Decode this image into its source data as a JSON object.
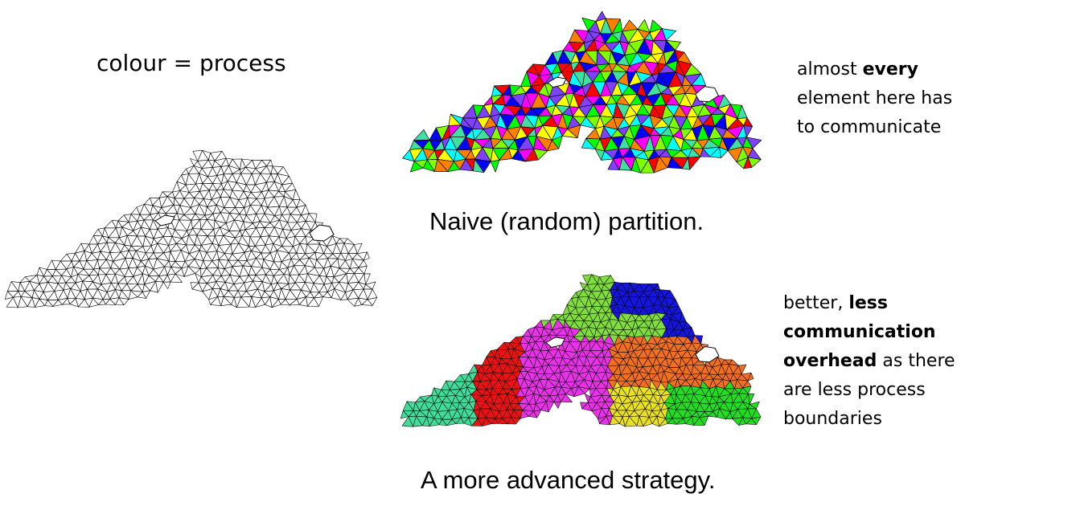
{
  "legend_text": "colour = process",
  "naive": {
    "caption": "Naive (random) partition.",
    "note": [
      {
        "text": "almost ",
        "bold": false
      },
      {
        "text": "every",
        "bold": true
      },
      {
        "text": " element here has to communicate",
        "bold": false
      }
    ],
    "palette": [
      "#ff0000",
      "#00ff00",
      "#0000ff",
      "#ffff00",
      "#ff00ff",
      "#00ffff",
      "#ff8000",
      "#40e0a0",
      "#8040ff",
      "#80ff00"
    ]
  },
  "advanced": {
    "caption": "A more advanced strategy.",
    "note": [
      {
        "text": "better, ",
        "bold": false
      },
      {
        "text": "less communication overhead",
        "bold": true
      },
      {
        "text": " as there are less process boundaries",
        "bold": false
      }
    ],
    "regions": [
      {
        "name": "teal",
        "color": "#3fdc9a"
      },
      {
        "name": "red",
        "color": "#ee1111"
      },
      {
        "name": "magenta",
        "color": "#e832e8"
      },
      {
        "name": "lime",
        "color": "#80dd3c"
      },
      {
        "name": "blue",
        "color": "#1515dd"
      },
      {
        "name": "orange",
        "color": "#f07020"
      },
      {
        "name": "yellow",
        "color": "#e8e020"
      },
      {
        "name": "green",
        "color": "#22dd22"
      }
    ]
  },
  "mesh_colors": {
    "plain_fill": "#ffffff",
    "edge": "#000000"
  }
}
